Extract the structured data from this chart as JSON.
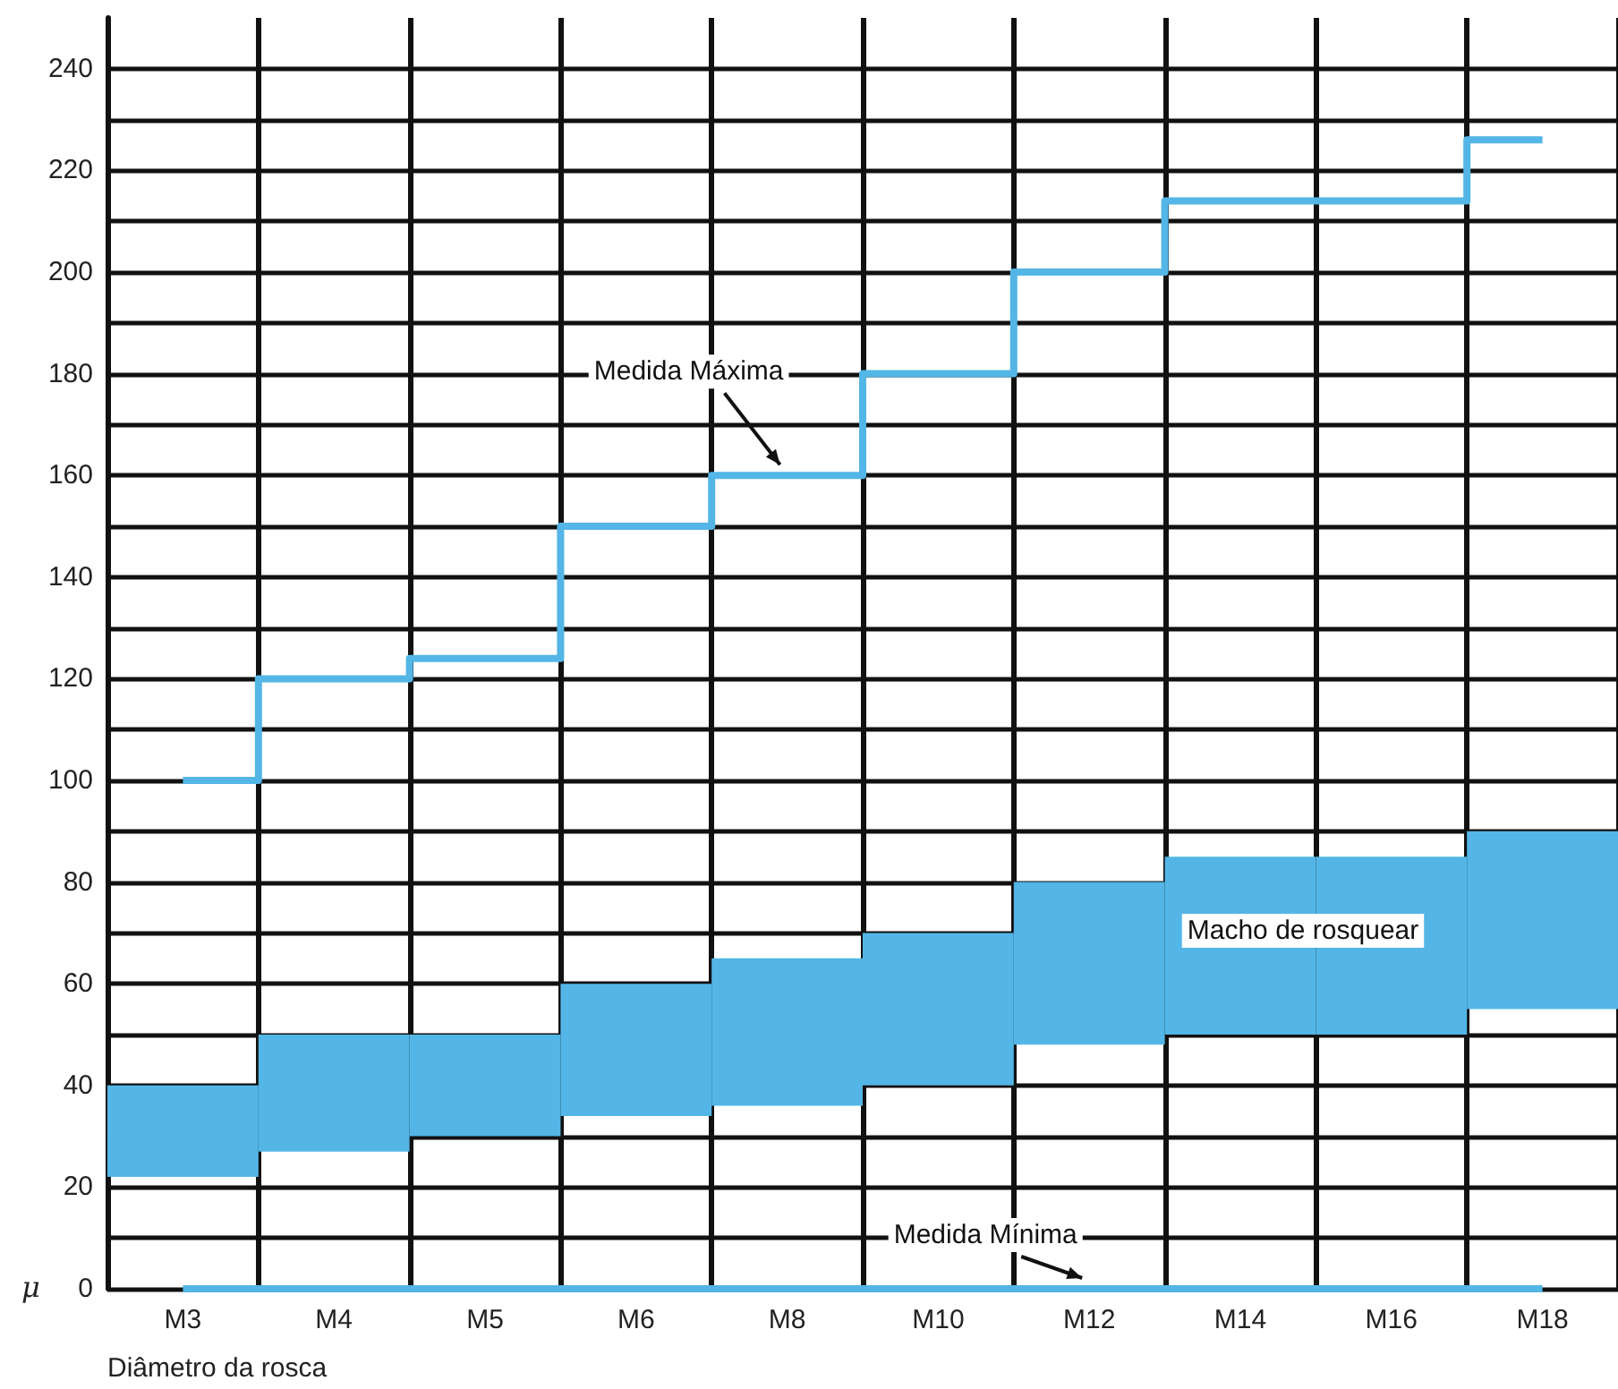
{
  "chart_data": {
    "type": "bar",
    "xlabel": "Diâmetro da rosca",
    "ylabel": "μ",
    "categories": [
      "M3",
      "M4",
      "M5",
      "M6",
      "M8",
      "M10",
      "M12",
      "M14",
      "M16",
      "M18"
    ],
    "series": [
      {
        "color": "#53b6e6",
        "values": [
          18,
          23,
          20,
          26,
          29,
          30,
          32,
          35,
          35,
          35
        ],
        "base": [
          22,
          27,
          30,
          34,
          36,
          40,
          48,
          50,
          50,
          55
        ]
      },
      {
        "type": "step",
        "color": "#53b6e6",
        "values": [
          100,
          120,
          124,
          150,
          160,
          180,
          200,
          214,
          214,
          226
        ]
      },
      {
        "type": "step",
        "color": "#53b6e6",
        "values": [
          0,
          0,
          0,
          0,
          0,
          0,
          0,
          0,
          0,
          0
        ]
      }
    ],
    "annotations": [
      {
        "text": "Medida Máxima",
        "x": "M8",
        "y": 160
      },
      {
        "text": "Medida Mínima",
        "x": "M12",
        "y": 0
      },
      "Macho de rosquear"
    ],
    "ylim": [
      0,
      250
    ],
    "yticks": [
      0,
      {
        "value": 10,
        "label": null
      },
      20,
      {
        "value": 30,
        "label": null
      },
      40,
      {
        "value": 50,
        "label": null
      },
      60,
      {
        "value": 70,
        "label": null
      },
      80,
      {
        "value": 90,
        "label": null
      },
      100,
      {
        "value": 110,
        "label": null
      },
      120,
      {
        "value": 130,
        "label": null
      },
      140,
      {
        "value": 150,
        "label": null
      },
      160,
      {
        "value": 170,
        "label": null
      },
      180,
      {
        "value": 190,
        "label": null
      },
      200,
      {
        "value": 210,
        "label": null
      },
      220,
      {
        "value": 230,
        "label": null
      },
      240
    ],
    "grid": true,
    "marker": "none",
    "line_style": "solid"
  }
}
